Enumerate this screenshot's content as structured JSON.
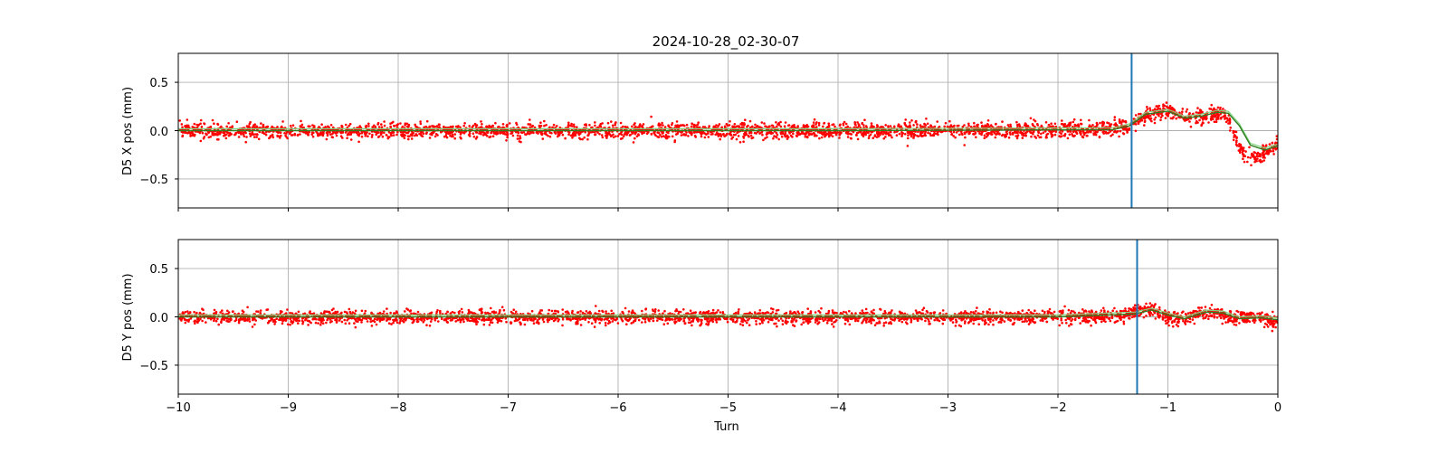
{
  "chart_data": {
    "title": "2024-10-28_02-30-07",
    "xlabel": "Turn",
    "xlim": [
      -10,
      0
    ],
    "xticks": [
      -10,
      -9,
      -8,
      -7,
      -6,
      -5,
      -4,
      -3,
      -2,
      -1,
      0
    ],
    "xtick_labels": [
      "−10",
      "−9",
      "−8",
      "−7",
      "−6",
      "−5",
      "−4",
      "−3",
      "−2",
      "−1",
      "0"
    ],
    "grid": true,
    "colors": {
      "points": "#ff0000",
      "fit": "#2e7d1f",
      "fit_light": "#7fd47f",
      "marker": "#1f77b4",
      "grid": "#b0b0b0"
    },
    "panels": [
      {
        "type": "scatter",
        "ylabel": "D5 X pos (mm)",
        "ylim": [
          -0.8,
          0.8
        ],
        "yticks": [
          0.5,
          0.0,
          -0.5
        ],
        "ytick_labels": [
          "0.5",
          "0.0",
          "−0.5"
        ],
        "marker_turn": -1.33,
        "noise_amplitude_mm": 0.07,
        "trend": [
          [
            -10,
            0
          ],
          [
            -4,
            0
          ],
          [
            -2,
            0.01
          ],
          [
            -1.5,
            0.02
          ],
          [
            -1.35,
            0.04
          ],
          [
            -1.25,
            0.13
          ],
          [
            -1.1,
            0.2
          ],
          [
            -0.95,
            0.2
          ],
          [
            -0.85,
            0.12
          ],
          [
            -0.75,
            0.13
          ],
          [
            -0.62,
            0.17
          ],
          [
            -0.5,
            0.19
          ],
          [
            -0.45,
            0.12
          ],
          [
            -0.38,
            -0.1
          ],
          [
            -0.3,
            -0.25
          ],
          [
            -0.2,
            -0.28
          ],
          [
            -0.1,
            -0.22
          ],
          [
            0,
            -0.13
          ]
        ],
        "fit_line": [
          [
            -10,
            0
          ],
          [
            -4,
            0
          ],
          [
            -1.5,
            0.01
          ],
          [
            -1.35,
            0.05
          ],
          [
            -1.2,
            0.17
          ],
          [
            -1.0,
            0.2
          ],
          [
            -0.85,
            0.13
          ],
          [
            -0.7,
            0.15
          ],
          [
            -0.55,
            0.19
          ],
          [
            -0.45,
            0.18
          ],
          [
            -0.35,
            0.05
          ],
          [
            -0.25,
            -0.15
          ],
          [
            -0.12,
            -0.2
          ],
          [
            0,
            -0.16
          ]
        ]
      },
      {
        "type": "scatter",
        "ylabel": "D5 Y pos (mm)",
        "ylim": [
          -0.8,
          0.8
        ],
        "yticks": [
          0.5,
          0.0,
          -0.5
        ],
        "ytick_labels": [
          "0.5",
          "0.0",
          "−0.5"
        ],
        "marker_turn": -1.28,
        "noise_amplitude_mm": 0.06,
        "trend": [
          [
            -10,
            0
          ],
          [
            -2,
            0
          ],
          [
            -1.4,
            0.01
          ],
          [
            -1.3,
            0.05
          ],
          [
            -1.2,
            0.08
          ],
          [
            -1.05,
            0.02
          ],
          [
            -0.9,
            -0.03
          ],
          [
            -0.7,
            0.05
          ],
          [
            -0.55,
            0.04
          ],
          [
            -0.4,
            -0.02
          ],
          [
            -0.2,
            0.0
          ],
          [
            0,
            -0.04
          ]
        ],
        "fit_line": [
          [
            -10,
            0
          ],
          [
            -2,
            0
          ],
          [
            -1.3,
            0.03
          ],
          [
            -1.15,
            0.07
          ],
          [
            -1.0,
            0.02
          ],
          [
            -0.85,
            -0.02
          ],
          [
            -0.65,
            0.05
          ],
          [
            -0.5,
            0.04
          ],
          [
            -0.35,
            -0.02
          ],
          [
            -0.15,
            -0.01
          ],
          [
            0,
            -0.03
          ]
        ]
      }
    ]
  }
}
